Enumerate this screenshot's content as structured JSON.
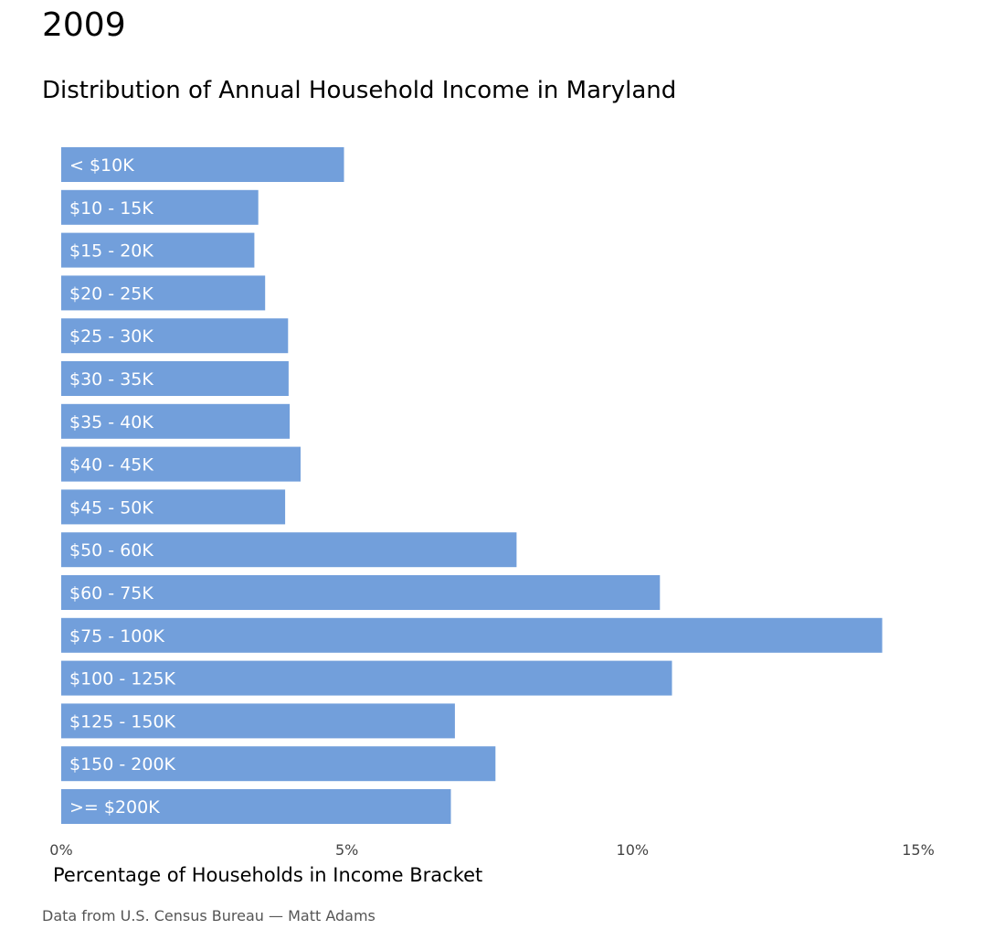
{
  "header": {
    "year": "2009",
    "title": "Distribution of Annual Household Income in Maryland"
  },
  "chart_data": {
    "type": "bar",
    "orientation": "horizontal",
    "title": "Distribution of Annual Household Income in Maryland",
    "xlabel": "Percentage of Households in Income Bracket",
    "ylabel": "",
    "xlim": [
      0,
      15
    ],
    "x_ticks": [
      0,
      5,
      10,
      15
    ],
    "x_tick_labels": [
      "0%",
      "5%",
      "10%",
      "15%"
    ],
    "grid": false,
    "bar_color": "#729fdb",
    "categories": [
      "< $10K",
      "$10 - 15K",
      "$15 - 20K",
      "$20 - 25K",
      "$25 - 30K",
      "$30 - 35K",
      "$35 - 40K",
      "$40 - 45K",
      "$45 - 50K",
      "$50 - 60K",
      "$60 - 75K",
      "$75 - 100K",
      "$100 - 125K",
      "$125 - 150K",
      "$150 - 200K",
      ">= $200K"
    ],
    "values": [
      4.95,
      3.45,
      3.38,
      3.57,
      3.97,
      3.98,
      4.0,
      4.19,
      3.92,
      7.97,
      10.48,
      14.37,
      10.69,
      6.89,
      7.6,
      6.82
    ]
  },
  "footer": {
    "source": "Data from U.S. Census Bureau — Matt Adams"
  }
}
